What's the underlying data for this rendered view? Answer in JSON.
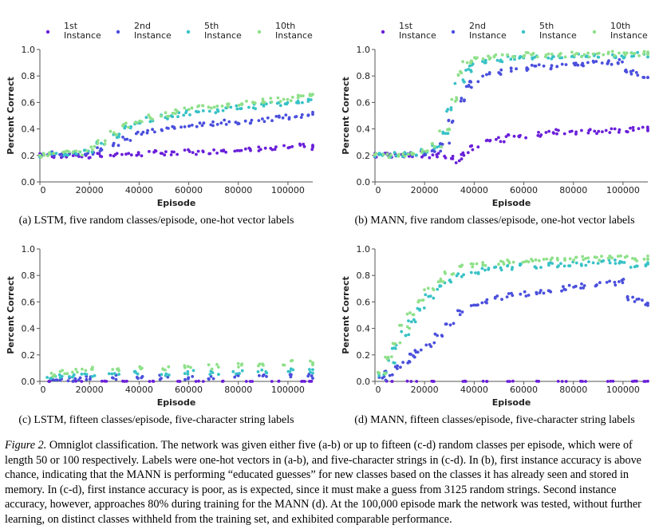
{
  "caption": {
    "label": "Figure 2.",
    "text": "Omniglot classification. The network was given either five (a-b) or up to fifteen (c-d) random classes per episode, which were of length 50 or 100 respectively. Labels were one-hot vectors in (a-b), and five-character strings in (c-d). In (b), first instance accuracy is above chance, indicating that the MANN is performing “educated guesses” for new classes based on the classes it has already seen and stored in memory. In (c-d), first instance accuracy is poor, as is expected, since it must make a guess from 3125 random strings. Second instance accuracy, however, approaches 80% during training for the MANN (d). At the 100,000 episode mark the network was tested, without further learning, on distinct classes withheld from the training set, and exhibited comparable performance."
  },
  "colors": {
    "1st": "#6a1fd9",
    "2nd": "#4a4fdc",
    "5th": "#38c2c6",
    "10th": "#8fe08a"
  },
  "chart_data": [
    {
      "type": "scatter",
      "caption": "(a) LSTM, five random classes/episode, one-hot vector labels",
      "xlabel": "Episode",
      "ylabel": "Percent Correct",
      "xlim": [
        0,
        110000
      ],
      "ylim": [
        0,
        1.0
      ],
      "xticks": [
        "0",
        "20000",
        "40000",
        "60000",
        "80000",
        "100000"
      ],
      "yticks": [
        "0.0",
        "0.2",
        "0.4",
        "0.6",
        "0.8",
        "1.0"
      ],
      "legend": [
        [
          "1st",
          "Instance"
        ],
        [
          "2nd",
          "Instance"
        ],
        [
          "5th",
          "Instance"
        ],
        [
          "10th",
          "Instance"
        ]
      ],
      "series": [
        {
          "name": "1st Instance",
          "x": [
            0,
            5000,
            10000,
            15000,
            20000,
            25000,
            30000,
            35000,
            40000,
            45000,
            50000,
            55000,
            60000,
            65000,
            70000,
            75000,
            80000,
            85000,
            90000,
            95000,
            100000,
            105000,
            110000
          ],
          "y": [
            0.2,
            0.2,
            0.2,
            0.2,
            0.19,
            0.2,
            0.21,
            0.21,
            0.21,
            0.22,
            0.22,
            0.21,
            0.23,
            0.22,
            0.23,
            0.24,
            0.25,
            0.24,
            0.25,
            0.25,
            0.26,
            0.27,
            0.26
          ]
        },
        {
          "name": "2nd Instance",
          "x": [
            0,
            5000,
            10000,
            15000,
            20000,
            25000,
            30000,
            35000,
            40000,
            45000,
            50000,
            55000,
            60000,
            65000,
            70000,
            75000,
            80000,
            85000,
            90000,
            95000,
            100000,
            105000,
            110000
          ],
          "y": [
            0.2,
            0.21,
            0.21,
            0.21,
            0.22,
            0.25,
            0.29,
            0.33,
            0.36,
            0.38,
            0.4,
            0.41,
            0.42,
            0.43,
            0.44,
            0.45,
            0.45,
            0.46,
            0.47,
            0.48,
            0.49,
            0.5,
            0.51
          ]
        },
        {
          "name": "5th Instance",
          "x": [
            0,
            5000,
            10000,
            15000,
            20000,
            25000,
            30000,
            35000,
            40000,
            45000,
            50000,
            55000,
            60000,
            65000,
            70000,
            75000,
            80000,
            85000,
            90000,
            95000,
            100000,
            105000,
            110000
          ],
          "y": [
            0.2,
            0.21,
            0.21,
            0.22,
            0.24,
            0.29,
            0.35,
            0.41,
            0.44,
            0.47,
            0.49,
            0.51,
            0.52,
            0.53,
            0.54,
            0.55,
            0.56,
            0.57,
            0.58,
            0.59,
            0.6,
            0.61,
            0.62
          ]
        },
        {
          "name": "10th Instance",
          "x": [
            0,
            5000,
            10000,
            15000,
            20000,
            25000,
            30000,
            35000,
            40000,
            45000,
            50000,
            55000,
            60000,
            65000,
            70000,
            75000,
            80000,
            85000,
            90000,
            95000,
            100000,
            105000,
            110000
          ],
          "y": [
            0.2,
            0.21,
            0.22,
            0.22,
            0.25,
            0.3,
            0.37,
            0.43,
            0.46,
            0.49,
            0.51,
            0.53,
            0.55,
            0.56,
            0.57,
            0.58,
            0.59,
            0.6,
            0.61,
            0.62,
            0.63,
            0.65,
            0.66
          ]
        }
      ]
    },
    {
      "type": "scatter",
      "caption": "(b) MANN, five random classes/episode, one-hot vector labels",
      "xlabel": "Episode",
      "ylabel": "Percent Correct",
      "xlim": [
        0,
        110000
      ],
      "ylim": [
        0,
        1.0
      ],
      "xticks": [
        "0",
        "20000",
        "40000",
        "60000",
        "80000",
        "100000"
      ],
      "yticks": [
        "0.0",
        "0.2",
        "0.4",
        "0.6",
        "0.8",
        "1.0"
      ],
      "legend": [
        [
          "1st",
          "Instance"
        ],
        [
          "2nd",
          "Instance"
        ],
        [
          "5th",
          "Instance"
        ],
        [
          "10th",
          "Instance"
        ]
      ],
      "series": [
        {
          "name": "1st Instance",
          "x": [
            0,
            5000,
            10000,
            15000,
            20000,
            25000,
            30000,
            33000,
            36000,
            40000,
            45000,
            50000,
            55000,
            60000,
            65000,
            70000,
            75000,
            80000,
            85000,
            90000,
            95000,
            100000,
            105000,
            110000
          ],
          "y": [
            0.2,
            0.2,
            0.2,
            0.2,
            0.2,
            0.2,
            0.19,
            0.16,
            0.21,
            0.26,
            0.3,
            0.32,
            0.34,
            0.35,
            0.36,
            0.37,
            0.38,
            0.37,
            0.38,
            0.38,
            0.39,
            0.39,
            0.4,
            0.4
          ]
        },
        {
          "name": "2nd Instance",
          "x": [
            0,
            5000,
            10000,
            15000,
            20000,
            25000,
            28000,
            31000,
            34000,
            37000,
            40000,
            45000,
            50000,
            55000,
            60000,
            65000,
            70000,
            75000,
            80000,
            85000,
            90000,
            95000,
            100000,
            102000,
            105000,
            110000
          ],
          "y": [
            0.2,
            0.2,
            0.2,
            0.21,
            0.22,
            0.24,
            0.3,
            0.45,
            0.62,
            0.72,
            0.77,
            0.81,
            0.83,
            0.85,
            0.86,
            0.87,
            0.87,
            0.88,
            0.88,
            0.89,
            0.9,
            0.9,
            0.91,
            0.84,
            0.82,
            0.8
          ]
        },
        {
          "name": "5th Instance",
          "x": [
            0,
            5000,
            10000,
            15000,
            20000,
            25000,
            28000,
            31000,
            34000,
            37000,
            40000,
            45000,
            50000,
            55000,
            60000,
            65000,
            70000,
            75000,
            80000,
            85000,
            90000,
            95000,
            100000,
            105000,
            110000
          ],
          "y": [
            0.2,
            0.2,
            0.21,
            0.22,
            0.23,
            0.27,
            0.36,
            0.55,
            0.76,
            0.85,
            0.89,
            0.91,
            0.92,
            0.93,
            0.94,
            0.94,
            0.94,
            0.95,
            0.95,
            0.95,
            0.95,
            0.95,
            0.95,
            0.96,
            0.96
          ]
        },
        {
          "name": "10th Instance",
          "x": [
            0,
            5000,
            10000,
            15000,
            20000,
            25000,
            28000,
            31000,
            34000,
            37000,
            40000,
            45000,
            50000,
            55000,
            60000,
            65000,
            70000,
            75000,
            80000,
            85000,
            90000,
            95000,
            100000,
            105000,
            110000
          ],
          "y": [
            0.2,
            0.2,
            0.21,
            0.22,
            0.24,
            0.28,
            0.4,
            0.62,
            0.82,
            0.9,
            0.93,
            0.94,
            0.95,
            0.95,
            0.96,
            0.96,
            0.96,
            0.96,
            0.97,
            0.96,
            0.97,
            0.97,
            0.96,
            0.96,
            0.97
          ]
        }
      ]
    },
    {
      "type": "scatter",
      "caption": "(c) LSTM, fifteen classes/episode, five-character string labels",
      "xlabel": "Episode",
      "ylabel": "Percent Correct",
      "xlim": [
        0,
        110000
      ],
      "ylim": [
        0,
        1.0
      ],
      "xticks": [
        "0",
        "20000",
        "40000",
        "60000",
        "80000",
        "100000"
      ],
      "yticks": [
        "0.0",
        "0.2",
        "0.4",
        "0.6",
        "0.8",
        "1.0"
      ],
      "series": [
        {
          "name": "1st Instance",
          "x": [
            5000,
            15000,
            25000,
            35000,
            45000,
            55000,
            65000,
            75000,
            85000,
            95000,
            105000,
            110000
          ],
          "y": [
            0.0,
            0.0,
            0.0,
            0.0,
            0.0,
            0.0,
            0.0,
            0.0,
            0.0,
            0.0,
            0.0,
            0.0
          ]
        },
        {
          "name": "2nd Instance",
          "x": [
            5000,
            10000,
            15000,
            20000,
            30000,
            40000,
            50000,
            60000,
            70000,
            80000,
            90000,
            100000,
            110000
          ],
          "y": [
            0.01,
            0.02,
            0.02,
            0.03,
            0.03,
            0.03,
            0.03,
            0.03,
            0.03,
            0.04,
            0.04,
            0.04,
            0.04
          ]
        },
        {
          "name": "5th Instance",
          "x": [
            5000,
            10000,
            15000,
            20000,
            30000,
            40000,
            50000,
            60000,
            70000,
            80000,
            90000,
            100000,
            110000
          ],
          "y": [
            0.03,
            0.04,
            0.05,
            0.05,
            0.06,
            0.06,
            0.06,
            0.07,
            0.07,
            0.07,
            0.08,
            0.08,
            0.08
          ]
        },
        {
          "name": "10th Instance",
          "x": [
            5000,
            10000,
            15000,
            20000,
            30000,
            40000,
            50000,
            60000,
            70000,
            80000,
            90000,
            100000,
            110000
          ],
          "y": [
            0.05,
            0.07,
            0.08,
            0.09,
            0.09,
            0.1,
            0.1,
            0.11,
            0.11,
            0.12,
            0.13,
            0.14,
            0.14
          ]
        }
      ]
    },
    {
      "type": "scatter",
      "caption": "(d) MANN, fifteen classes/episode, five-character string labels",
      "xlabel": "Episode",
      "ylabel": "Percent Correct",
      "xlim": [
        0,
        110000
      ],
      "ylim": [
        0,
        1.0
      ],
      "xticks": [
        "0",
        "20000",
        "40000",
        "60000",
        "80000",
        "100000"
      ],
      "yticks": [
        "0.0",
        "0.2",
        "0.4",
        "0.6",
        "0.8",
        "1.0"
      ],
      "series": [
        {
          "name": "1st Instance",
          "x": [
            5000,
            15000,
            25000,
            35000,
            45000,
            55000,
            65000,
            75000,
            85000,
            95000,
            105000,
            110000
          ],
          "y": [
            0.0,
            0.0,
            0.0,
            0.0,
            0.0,
            0.0,
            0.0,
            0.0,
            0.0,
            0.0,
            0.0,
            0.0
          ]
        },
        {
          "name": "2nd Instance",
          "x": [
            3000,
            6000,
            9000,
            12000,
            15000,
            18000,
            22000,
            26000,
            30000,
            35000,
            40000,
            45000,
            50000,
            55000,
            60000,
            65000,
            70000,
            75000,
            80000,
            85000,
            90000,
            95000,
            100000,
            102000,
            106000,
            110000
          ],
          "y": [
            0.02,
            0.06,
            0.1,
            0.15,
            0.19,
            0.22,
            0.28,
            0.35,
            0.43,
            0.52,
            0.57,
            0.6,
            0.63,
            0.65,
            0.66,
            0.67,
            0.68,
            0.7,
            0.71,
            0.72,
            0.73,
            0.74,
            0.76,
            0.63,
            0.61,
            0.59
          ]
        },
        {
          "name": "5th Instance",
          "x": [
            3000,
            6000,
            9000,
            12000,
            15000,
            18000,
            22000,
            26000,
            30000,
            35000,
            40000,
            45000,
            50000,
            55000,
            60000,
            65000,
            70000,
            75000,
            80000,
            85000,
            90000,
            95000,
            100000,
            105000,
            110000
          ],
          "y": [
            0.05,
            0.15,
            0.26,
            0.36,
            0.45,
            0.54,
            0.64,
            0.71,
            0.76,
            0.8,
            0.82,
            0.84,
            0.85,
            0.86,
            0.87,
            0.87,
            0.88,
            0.88,
            0.89,
            0.89,
            0.9,
            0.9,
            0.91,
            0.86,
            0.88
          ]
        },
        {
          "name": "10th Instance",
          "x": [
            3000,
            6000,
            9000,
            12000,
            15000,
            18000,
            22000,
            26000,
            30000,
            35000,
            40000,
            45000,
            50000,
            55000,
            60000,
            65000,
            70000,
            75000,
            80000,
            85000,
            90000,
            95000,
            100000,
            105000,
            110000
          ],
          "y": [
            0.06,
            0.18,
            0.3,
            0.41,
            0.51,
            0.6,
            0.69,
            0.76,
            0.82,
            0.86,
            0.88,
            0.89,
            0.9,
            0.91,
            0.91,
            0.92,
            0.92,
            0.92,
            0.93,
            0.93,
            0.93,
            0.93,
            0.94,
            0.92,
            0.93
          ]
        }
      ]
    }
  ]
}
